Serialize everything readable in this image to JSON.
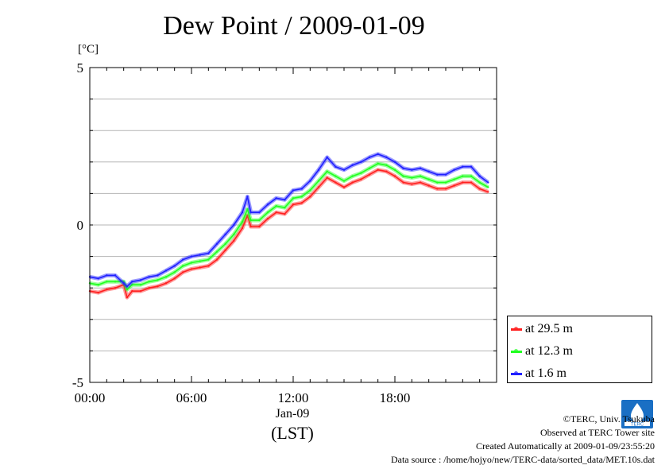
{
  "chart_data": {
    "type": "line",
    "title": "Dew Point / 2009-01-09",
    "ylabel": "[°C]",
    "ylim": [
      -5,
      5
    ],
    "yticks": [
      "5",
      "0",
      "-5"
    ],
    "xlim": [
      0,
      24
    ],
    "xticks": [
      "00:00",
      "06:00",
      "12:00",
      "18:00"
    ],
    "xlabel_date": "Jan-09",
    "xlabel_tz": "(LST)",
    "legend_position": "bottom-right",
    "grid": true,
    "x": [
      0,
      0.5,
      1,
      1.5,
      2,
      2.2,
      2.5,
      3,
      3.5,
      4,
      4.5,
      5,
      5.5,
      6,
      6.5,
      7,
      7.5,
      8,
      8.5,
      9,
      9.3,
      9.5,
      10,
      10.5,
      11,
      11.5,
      12,
      12.5,
      13,
      13.5,
      14,
      14.5,
      15,
      15.5,
      16,
      16.5,
      17,
      17.5,
      18,
      18.5,
      19,
      19.5,
      20,
      20.5,
      21,
      21.5,
      22,
      22.5,
      23,
      23.5
    ],
    "series": [
      {
        "name": "at 29.5 m",
        "color": "#ff2020",
        "values": [
          -2.1,
          -2.15,
          -2.05,
          -2.0,
          -1.9,
          -2.3,
          -2.1,
          -2.1,
          -2.0,
          -1.95,
          -1.85,
          -1.7,
          -1.5,
          -1.4,
          -1.35,
          -1.3,
          -1.1,
          -0.8,
          -0.5,
          -0.1,
          0.3,
          -0.05,
          -0.05,
          0.2,
          0.4,
          0.35,
          0.65,
          0.7,
          0.9,
          1.2,
          1.5,
          1.35,
          1.2,
          1.35,
          1.45,
          1.6,
          1.75,
          1.7,
          1.55,
          1.35,
          1.3,
          1.35,
          1.25,
          1.15,
          1.15,
          1.25,
          1.35,
          1.35,
          1.15,
          1.05
        ]
      },
      {
        "name": "at 12.3 m",
        "color": "#20ff20",
        "values": [
          -1.85,
          -1.9,
          -1.8,
          -1.8,
          -1.8,
          -2.05,
          -1.9,
          -1.9,
          -1.8,
          -1.75,
          -1.65,
          -1.5,
          -1.3,
          -1.2,
          -1.15,
          -1.1,
          -0.85,
          -0.6,
          -0.3,
          0.1,
          0.5,
          0.15,
          0.15,
          0.4,
          0.6,
          0.55,
          0.85,
          0.9,
          1.1,
          1.4,
          1.7,
          1.55,
          1.4,
          1.55,
          1.65,
          1.8,
          1.95,
          1.9,
          1.75,
          1.55,
          1.5,
          1.55,
          1.45,
          1.35,
          1.35,
          1.45,
          1.55,
          1.55,
          1.35,
          1.2
        ]
      },
      {
        "name": "at 1.6 m",
        "color": "#2020ff",
        "values": [
          -1.65,
          -1.7,
          -1.6,
          -1.6,
          -1.85,
          -1.95,
          -1.8,
          -1.75,
          -1.65,
          -1.6,
          -1.45,
          -1.3,
          -1.1,
          -1.0,
          -0.95,
          -0.9,
          -0.6,
          -0.3,
          0.0,
          0.4,
          0.9,
          0.4,
          0.4,
          0.65,
          0.85,
          0.8,
          1.1,
          1.15,
          1.4,
          1.75,
          2.15,
          1.85,
          1.75,
          1.9,
          2.0,
          2.15,
          2.25,
          2.15,
          2.0,
          1.8,
          1.75,
          1.8,
          1.7,
          1.6,
          1.6,
          1.75,
          1.85,
          1.85,
          1.55,
          1.35
        ]
      }
    ]
  },
  "footer": {
    "line1": "©TERC, Univ. Tsukuba",
    "line2": "Observed at TERC Tower site",
    "line3": "Created Automatically at 2009-01-09/23:55:20",
    "line4": "Data source : /home/hojyo/new/TERC-data/sorted_data/MET.10s.dat"
  },
  "logo_text": "TERC"
}
